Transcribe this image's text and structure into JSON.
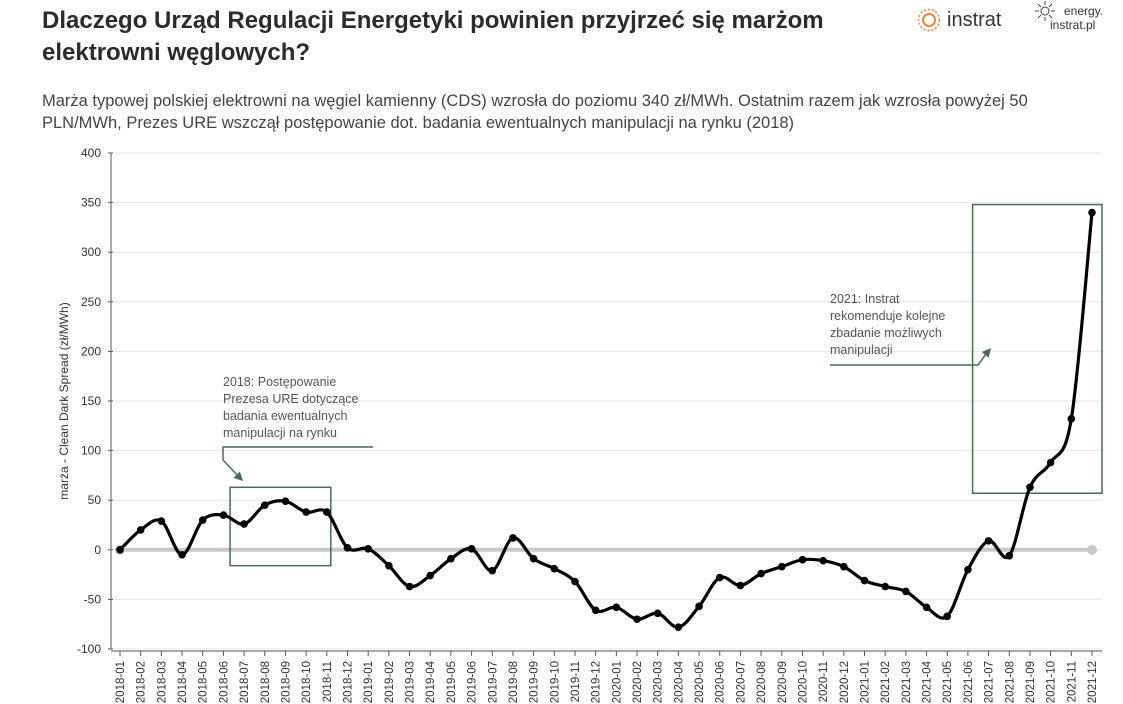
{
  "header": {
    "title": "Dlaczego Urząd Regulacji Energetyki powinien przyjrzeć się marżom elektrowni węglowych?",
    "subtitle": "Marża typowej polskiej elektrowni na węgiel kamienny (CDS) wzrosła do poziomu 340 zł/MWh. Ostatnim razem jak wzrosła powyżej 50 PLN/MWh, Prezes URE wszczął postępowanie dot. badania ewentualnych manipulacji na rynku (2018)",
    "logo_instrat": "instrat",
    "logo_energy_line1": "energy.",
    "logo_energy_line2": "instrat.pl"
  },
  "colors": {
    "line": "#000000",
    "zero_line": "#c8c8c8",
    "annotation": "#4a6b5a",
    "grid": "#e6e6e6",
    "logo_orange": "#e08a3c"
  },
  "chart_data": {
    "type": "line",
    "title": "",
    "xlabel": "",
    "ylabel": "marża - Clean Dark Spread (zł/MWh)",
    "ylim": [
      -100,
      400
    ],
    "yticks": [
      -100,
      -50,
      0,
      50,
      100,
      150,
      200,
      250,
      300,
      350,
      400
    ],
    "ytick_labels": [
      "-100",
      "-50",
      "0",
      "50",
      "100",
      "150",
      "200",
      "250",
      "300",
      "350",
      "400"
    ],
    "categories": [
      "2018-01",
      "2018-02",
      "2018-03",
      "2018-04",
      "2018-05",
      "2018-06",
      "2018-07",
      "2018-08",
      "2018-09",
      "2018-10",
      "2018-11",
      "2018-12",
      "2019-01",
      "2019-02",
      "2019-03",
      "2019-04",
      "2019-05",
      "2019-06",
      "2019-07",
      "2019-08",
      "2019-09",
      "2019-10",
      "2019-11",
      "2019-12",
      "2020-01",
      "2020-02",
      "2020-03",
      "2020-04",
      "2020-05",
      "2020-06",
      "2020-07",
      "2020-08",
      "2020-09",
      "2020-10",
      "2020-11",
      "2020-12",
      "2021-01",
      "2021-02",
      "2021-03",
      "2021-04",
      "2021-05",
      "2021-06",
      "2021-07",
      "2021-08",
      "2021-09",
      "2021-10",
      "2021-11",
      "2021-12"
    ],
    "values": [
      0,
      20,
      29,
      -5,
      30,
      35,
      26,
      45,
      49,
      38,
      38,
      2,
      1,
      -16,
      -37,
      -26,
      -9,
      1,
      -21,
      12,
      -9,
      -19,
      -32,
      -61,
      -58,
      -70,
      -64,
      -78,
      -57,
      -28,
      -36,
      -24,
      -17,
      -10,
      -11,
      -17,
      -31,
      -37,
      -42,
      -58,
      -67,
      -20,
      9,
      -6,
      63,
      88,
      132,
      340
    ],
    "reference_line": {
      "name": "zero",
      "value": 0
    },
    "annotations": [
      {
        "name": "2018",
        "text_lines": [
          "2018: Postępowanie",
          "Prezesa URE dotyczące",
          "badania ewentualnych",
          "manipulacji na rynku"
        ],
        "box_x": [
          "2018-07",
          "2018-11"
        ],
        "box_y": [
          -16,
          63
        ]
      },
      {
        "name": "2021",
        "text_lines": [
          "2021: Instrat",
          "rekomenduje kolejne",
          "zbadanie możliwych",
          "manipulacji"
        ],
        "box_x": [
          "2021-07",
          "2021-12"
        ],
        "box_y": [
          57,
          348
        ]
      }
    ]
  }
}
